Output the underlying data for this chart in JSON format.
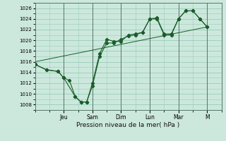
{
  "xlabel": "Pression niveau de la mer( hPa )",
  "bg_color": "#cce8dc",
  "grid_color": "#99ccbb",
  "line_color": "#1a5c2a",
  "dark_line_color": "#1a4a22",
  "ylim": [
    1007,
    1027
  ],
  "yticks": [
    1008,
    1010,
    1012,
    1014,
    1016,
    1018,
    1020,
    1022,
    1024,
    1026
  ],
  "day_labels": [
    "Jeu",
    "Sam",
    "Dim",
    "Lun",
    "Mar",
    "M"
  ],
  "day_positions": [
    2.0,
    4.0,
    6.0,
    8.0,
    10.0,
    12.0
  ],
  "xlim": [
    0,
    13
  ],
  "series1_x": [
    0.0,
    0.8,
    1.6,
    2.0,
    2.4,
    2.8,
    3.2,
    3.6,
    4.0,
    4.5,
    5.0,
    5.5,
    6.0,
    6.5,
    7.0,
    7.5,
    8.0,
    8.5,
    9.0,
    9.5,
    10.0,
    10.5,
    11.0,
    11.5,
    12.0
  ],
  "series1_y": [
    1015.5,
    1014.5,
    1014.2,
    1013.0,
    1012.5,
    1009.5,
    1008.5,
    1008.5,
    1011.5,
    1017.0,
    1019.5,
    1019.5,
    1020.2,
    1020.8,
    1021.0,
    1021.5,
    1024.0,
    1024.0,
    1021.0,
    1021.0,
    1024.0,
    1025.5,
    1025.5,
    1024.0,
    1022.5
  ],
  "series2_x": [
    0.0,
    0.8,
    1.6,
    2.0,
    2.8,
    3.2,
    3.6,
    4.0,
    4.5,
    5.0,
    5.5,
    6.0,
    6.5,
    7.0,
    7.5,
    8.0,
    8.5,
    9.0,
    9.5,
    10.0,
    10.5,
    11.0,
    11.5,
    12.0
  ],
  "series2_y": [
    1015.5,
    1014.5,
    1014.2,
    1013.0,
    1009.5,
    1008.5,
    1008.5,
    1012.0,
    1017.5,
    1020.2,
    1019.8,
    1019.8,
    1021.0,
    1021.2,
    1021.5,
    1024.0,
    1024.2,
    1021.2,
    1021.2,
    1024.0,
    1025.5,
    1025.5,
    1024.0,
    1022.5
  ],
  "trend_x": [
    0.0,
    12.0
  ],
  "trend_y": [
    1016.0,
    1022.5
  ]
}
